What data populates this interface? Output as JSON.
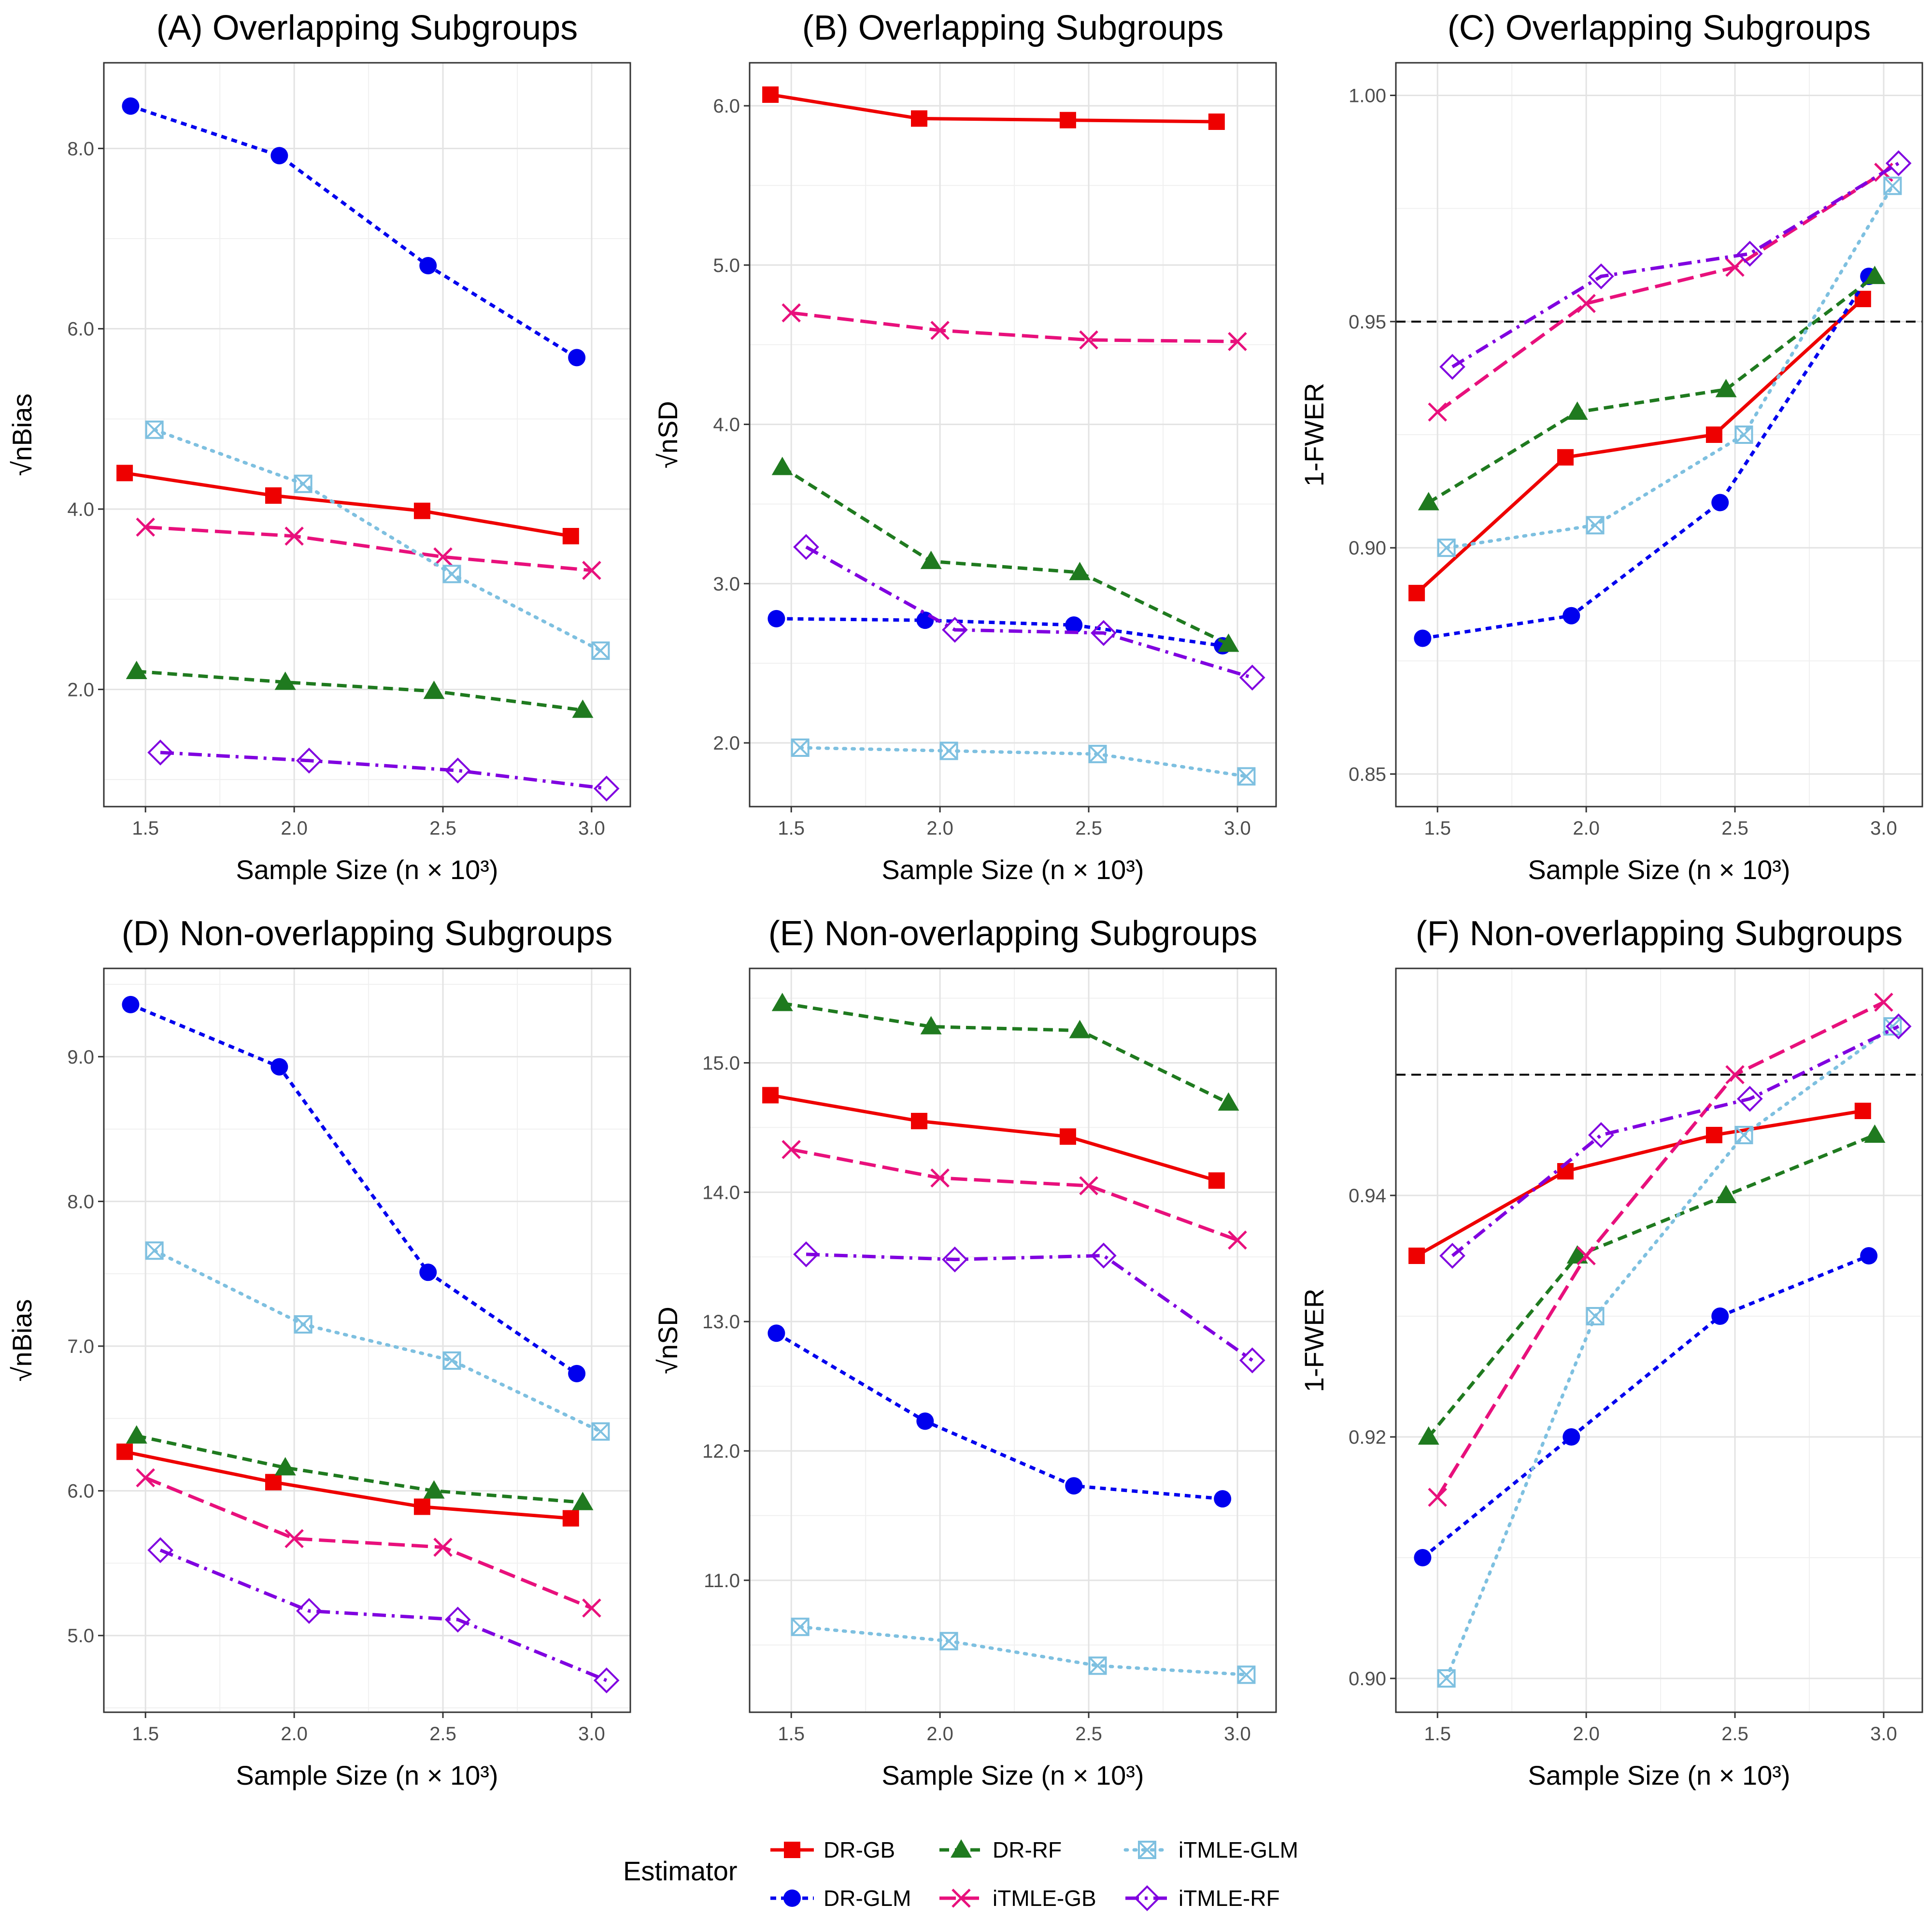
{
  "chart_data": [
    {
      "id": "A",
      "type": "line",
      "title": "(A) Overlapping Subgroups",
      "xlabel": "Sample Size (n × 10³)",
      "ylabel": "√nBias",
      "x": [
        1.5,
        2.0,
        2.5,
        3.0
      ],
      "xticks": [
        "1.5",
        "2.0",
        "2.5",
        "3.0"
      ],
      "xlim": [
        1.36,
        3.13
      ],
      "ylim": [
        0.7,
        8.95
      ],
      "yticks": [
        2.0,
        4.0,
        6.0,
        8.0
      ],
      "ytick_labels": [
        "2.0",
        "4.0",
        "6.0",
        "8.0"
      ],
      "series": [
        {
          "name": "DR-GB",
          "values": [
            4.4,
            4.15,
            3.98,
            3.7
          ]
        },
        {
          "name": "DR-GLM",
          "values": [
            8.47,
            7.92,
            6.7,
            5.68
          ]
        },
        {
          "name": "DR-RF",
          "values": [
            2.2,
            2.08,
            1.98,
            1.77
          ]
        },
        {
          "name": "iTMLE-GB",
          "values": [
            3.8,
            3.7,
            3.47,
            3.32
          ]
        },
        {
          "name": "iTMLE-GLM",
          "values": [
            4.88,
            4.28,
            3.28,
            2.43
          ]
        },
        {
          "name": "iTMLE-RF",
          "values": [
            1.3,
            1.21,
            1.1,
            0.9
          ]
        }
      ]
    },
    {
      "id": "B",
      "type": "line",
      "title": "(B) Overlapping Subgroups",
      "xlabel": "Sample Size (n × 10³)",
      "ylabel": "√nSD",
      "x": [
        1.5,
        2.0,
        2.5,
        3.0
      ],
      "xticks": [
        "1.5",
        "2.0",
        "2.5",
        "3.0"
      ],
      "xlim": [
        1.36,
        3.13
      ],
      "ylim": [
        1.6,
        6.27
      ],
      "yticks": [
        2.0,
        3.0,
        4.0,
        5.0,
        6.0
      ],
      "ytick_labels": [
        "2.0",
        "3.0",
        "4.0",
        "5.0",
        "6.0"
      ],
      "series": [
        {
          "name": "DR-GB",
          "values": [
            6.07,
            5.92,
            5.91,
            5.9
          ]
        },
        {
          "name": "DR-GLM",
          "values": [
            2.78,
            2.77,
            2.74,
            2.61
          ]
        },
        {
          "name": "DR-RF",
          "values": [
            3.73,
            3.14,
            3.07,
            2.62
          ]
        },
        {
          "name": "iTMLE-GB",
          "values": [
            4.7,
            4.59,
            4.53,
            4.52
          ]
        },
        {
          "name": "iTMLE-GLM",
          "values": [
            1.97,
            1.95,
            1.93,
            1.79
          ]
        },
        {
          "name": "iTMLE-RF",
          "values": [
            3.23,
            2.71,
            2.69,
            2.41
          ]
        }
      ]
    },
    {
      "id": "C",
      "type": "line",
      "title": "(C) Overlapping Subgroups",
      "xlabel": "Sample Size (n × 10³)",
      "ylabel": "1-FWER",
      "x": [
        1.5,
        2.0,
        2.5,
        3.0
      ],
      "xticks": [
        "1.5",
        "2.0",
        "2.5",
        "3.0"
      ],
      "xlim": [
        1.36,
        3.13
      ],
      "ylim": [
        0.8428,
        1.0072
      ],
      "yticks": [
        0.85,
        0.9,
        0.95,
        1.0
      ],
      "ytick_labels": [
        "0.85",
        "0.90",
        "0.95",
        "1.00"
      ],
      "reference_line": 0.95,
      "series": [
        {
          "name": "DR-GB",
          "values": [
            0.89,
            0.92,
            0.925,
            0.955
          ]
        },
        {
          "name": "DR-GLM",
          "values": [
            0.88,
            0.885,
            0.91,
            0.96
          ]
        },
        {
          "name": "DR-RF",
          "values": [
            0.91,
            0.93,
            0.935,
            0.96
          ]
        },
        {
          "name": "iTMLE-GB",
          "values": [
            0.93,
            0.954,
            0.962,
            0.983
          ]
        },
        {
          "name": "iTMLE-GLM",
          "values": [
            0.9,
            0.905,
            0.925,
            0.98
          ]
        },
        {
          "name": "iTMLE-RF",
          "values": [
            0.94,
            0.96,
            0.965,
            0.985
          ]
        }
      ]
    },
    {
      "id": "D",
      "type": "line",
      "title": "(D) Non-overlapping Subgroups",
      "xlabel": "Sample Size (n × 10³)",
      "ylabel": "√nBias",
      "x": [
        1.5,
        2.0,
        2.5,
        3.0
      ],
      "xticks": [
        "1.5",
        "2.0",
        "2.5",
        "3.0"
      ],
      "xlim": [
        1.36,
        3.13
      ],
      "ylim": [
        4.47,
        9.61
      ],
      "yticks": [
        5.0,
        6.0,
        7.0,
        8.0,
        9.0
      ],
      "ytick_labels": [
        "5.0",
        "6.0",
        "7.0",
        "8.0",
        "9.0"
      ],
      "series": [
        {
          "name": "DR-GB",
          "values": [
            6.27,
            6.06,
            5.89,
            5.81
          ]
        },
        {
          "name": "DR-GLM",
          "values": [
            9.36,
            8.93,
            7.51,
            6.81
          ]
        },
        {
          "name": "DR-RF",
          "values": [
            6.38,
            6.16,
            6.0,
            5.92
          ]
        },
        {
          "name": "iTMLE-GB",
          "values": [
            6.09,
            5.67,
            5.61,
            5.19
          ]
        },
        {
          "name": "iTMLE-GLM",
          "values": [
            7.66,
            7.15,
            6.9,
            6.41
          ]
        },
        {
          "name": "iTMLE-RF",
          "values": [
            5.59,
            5.17,
            5.11,
            4.69
          ]
        }
      ]
    },
    {
      "id": "E",
      "type": "line",
      "title": "(E) Non-overlapping Subgroups",
      "xlabel": "Sample Size (n × 10³)",
      "ylabel": "√nSD",
      "x": [
        1.5,
        2.0,
        2.5,
        3.0
      ],
      "xticks": [
        "1.5",
        "2.0",
        "2.5",
        "3.0"
      ],
      "xlim": [
        1.36,
        3.13
      ],
      "ylim": [
        9.98,
        15.73
      ],
      "yticks": [
        11.0,
        12.0,
        13.0,
        14.0,
        15.0
      ],
      "ytick_labels": [
        "11.0",
        "12.0",
        "13.0",
        "14.0",
        "15.0"
      ],
      "series": [
        {
          "name": "DR-GB",
          "values": [
            14.75,
            14.55,
            14.43,
            14.09
          ]
        },
        {
          "name": "DR-GLM",
          "values": [
            12.91,
            12.23,
            11.73,
            11.63
          ]
        },
        {
          "name": "DR-RF",
          "values": [
            15.46,
            15.28,
            15.25,
            14.69
          ]
        },
        {
          "name": "iTMLE-GB",
          "values": [
            14.33,
            14.11,
            14.05,
            13.63
          ]
        },
        {
          "name": "iTMLE-GLM",
          "values": [
            10.64,
            10.53,
            10.34,
            10.27
          ]
        },
        {
          "name": "iTMLE-RF",
          "values": [
            13.52,
            13.48,
            13.51,
            12.7
          ]
        }
      ]
    },
    {
      "id": "F",
      "type": "line",
      "title": "(F) Non-overlapping Subgroups",
      "xlabel": "Sample Size (n × 10³)",
      "ylabel": "1-FWER",
      "x": [
        1.5,
        2.0,
        2.5,
        3.0
      ],
      "xticks": [
        "1.5",
        "2.0",
        "2.5",
        "3.0"
      ],
      "xlim": [
        1.36,
        3.13
      ],
      "ylim": [
        0.8972,
        0.9588
      ],
      "yticks": [
        0.9,
        0.92,
        0.94
      ],
      "ytick_labels": [
        "0.90",
        "0.92",
        "0.94"
      ],
      "reference_line": 0.95,
      "series": [
        {
          "name": "DR-GB",
          "values": [
            0.935,
            0.942,
            0.945,
            0.947
          ]
        },
        {
          "name": "DR-GLM",
          "values": [
            0.91,
            0.92,
            0.93,
            0.935
          ]
        },
        {
          "name": "DR-RF",
          "values": [
            0.92,
            0.935,
            0.94,
            0.945
          ]
        },
        {
          "name": "iTMLE-GB",
          "values": [
            0.915,
            0.935,
            0.95,
            0.956
          ]
        },
        {
          "name": "iTMLE-GLM",
          "values": [
            0.9,
            0.93,
            0.945,
            0.954
          ]
        },
        {
          "name": "iTMLE-RF",
          "values": [
            0.935,
            0.945,
            0.948,
            0.954
          ]
        }
      ]
    }
  ],
  "legend": {
    "title": "Estimator",
    "entries": [
      "DR-GB",
      "DR-GLM",
      "DR-RF",
      "iTMLE-GB",
      "iTMLE-GLM",
      "iTMLE-RF"
    ]
  },
  "series_styles": {
    "DR-GB": {
      "color": "#EE0000",
      "dash": "solid",
      "marker": "square",
      "xoff": -0.07
    },
    "DR-GLM": {
      "color": "#0000EE",
      "dash": "dotted-short",
      "marker": "circle",
      "xoff": -0.05
    },
    "DR-RF": {
      "color": "#1F7A1F",
      "dash": "dashed",
      "marker": "triangle",
      "xoff": -0.03
    },
    "iTMLE-GB": {
      "color": "#E8107C",
      "dash": "longdash",
      "marker": "x",
      "xoff": 0.0
    },
    "iTMLE-GLM": {
      "color": "#7EC0E0",
      "dash": "dotted",
      "marker": "boxx",
      "xoff": 0.03
    },
    "iTMLE-RF": {
      "color": "#8000E0",
      "dash": "dashdot",
      "marker": "diamond",
      "xoff": 0.05
    }
  }
}
